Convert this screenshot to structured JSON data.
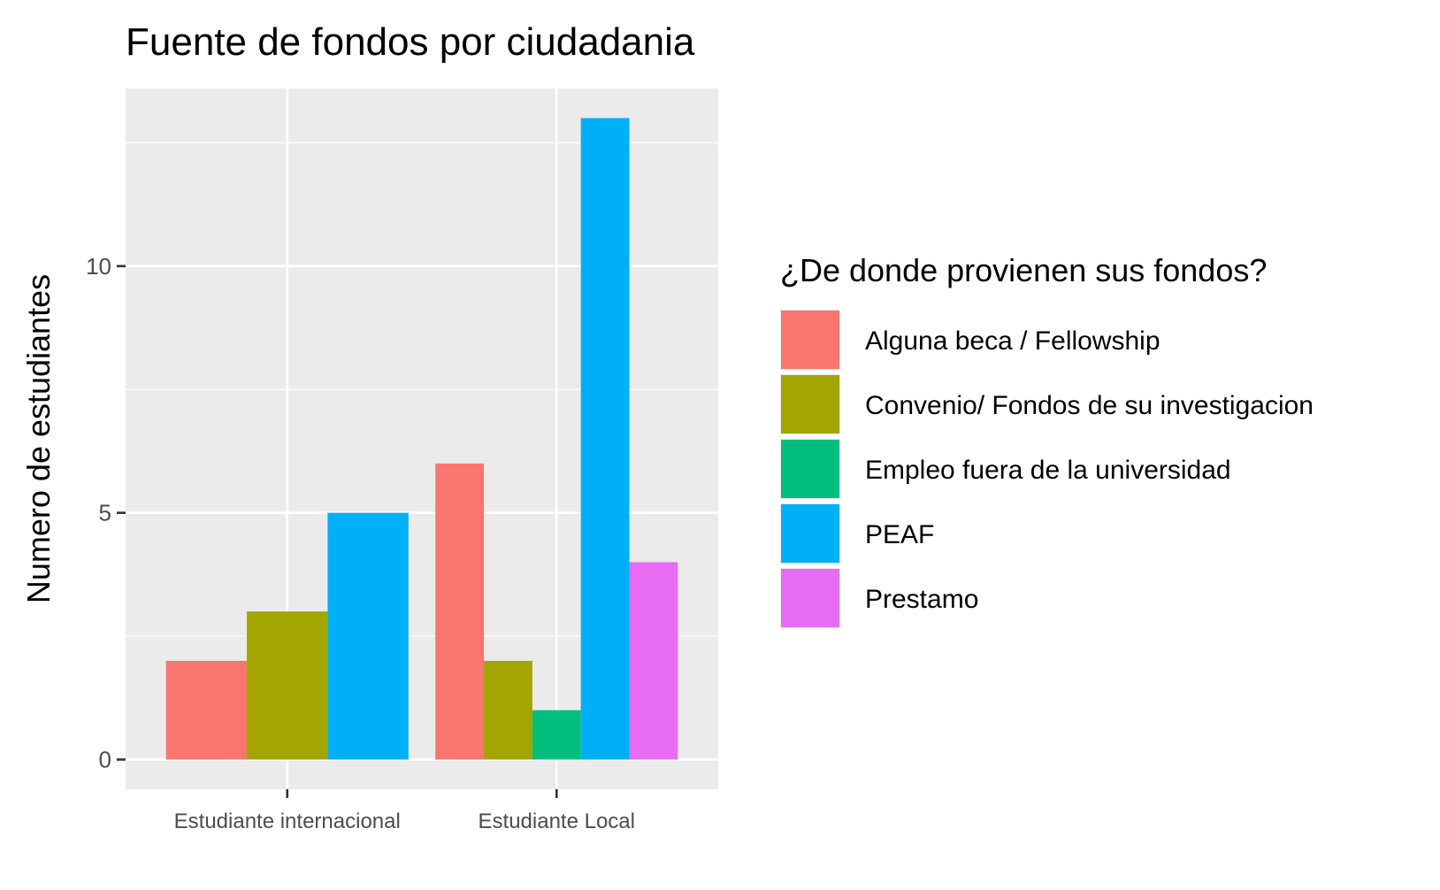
{
  "chart_data": {
    "type": "bar",
    "title": "Fuente de fondos por ciudadania",
    "xlabel": "",
    "ylabel": "Numero de estudiantes",
    "categories": [
      "Estudiante internacional",
      "Estudiante Local"
    ],
    "y_ticks": [
      0,
      5,
      10
    ],
    "ylim": [
      -0.6,
      13.6
    ],
    "grid": true,
    "legend": {
      "title": "¿De donde provienen sus fondos?",
      "placement": "right"
    },
    "series": [
      {
        "name": "Alguna beca / Fellowship",
        "color": "#F8766D",
        "values": [
          2,
          6
        ]
      },
      {
        "name": "Convenio/ Fondos de su investigacion",
        "color": "#A3A500",
        "values": [
          3,
          2
        ]
      },
      {
        "name": "Empleo fuera de la universidad",
        "color": "#00BF7D",
        "values": [
          null,
          1
        ]
      },
      {
        "name": "PEAF",
        "color": "#00B0F6",
        "values": [
          5,
          13
        ]
      },
      {
        "name": "Prestamo",
        "color": "#E76BF3",
        "values": [
          null,
          4
        ]
      }
    ],
    "colors": {
      "panel": "#EBEBEB",
      "grid": "#FFFFFF"
    }
  }
}
